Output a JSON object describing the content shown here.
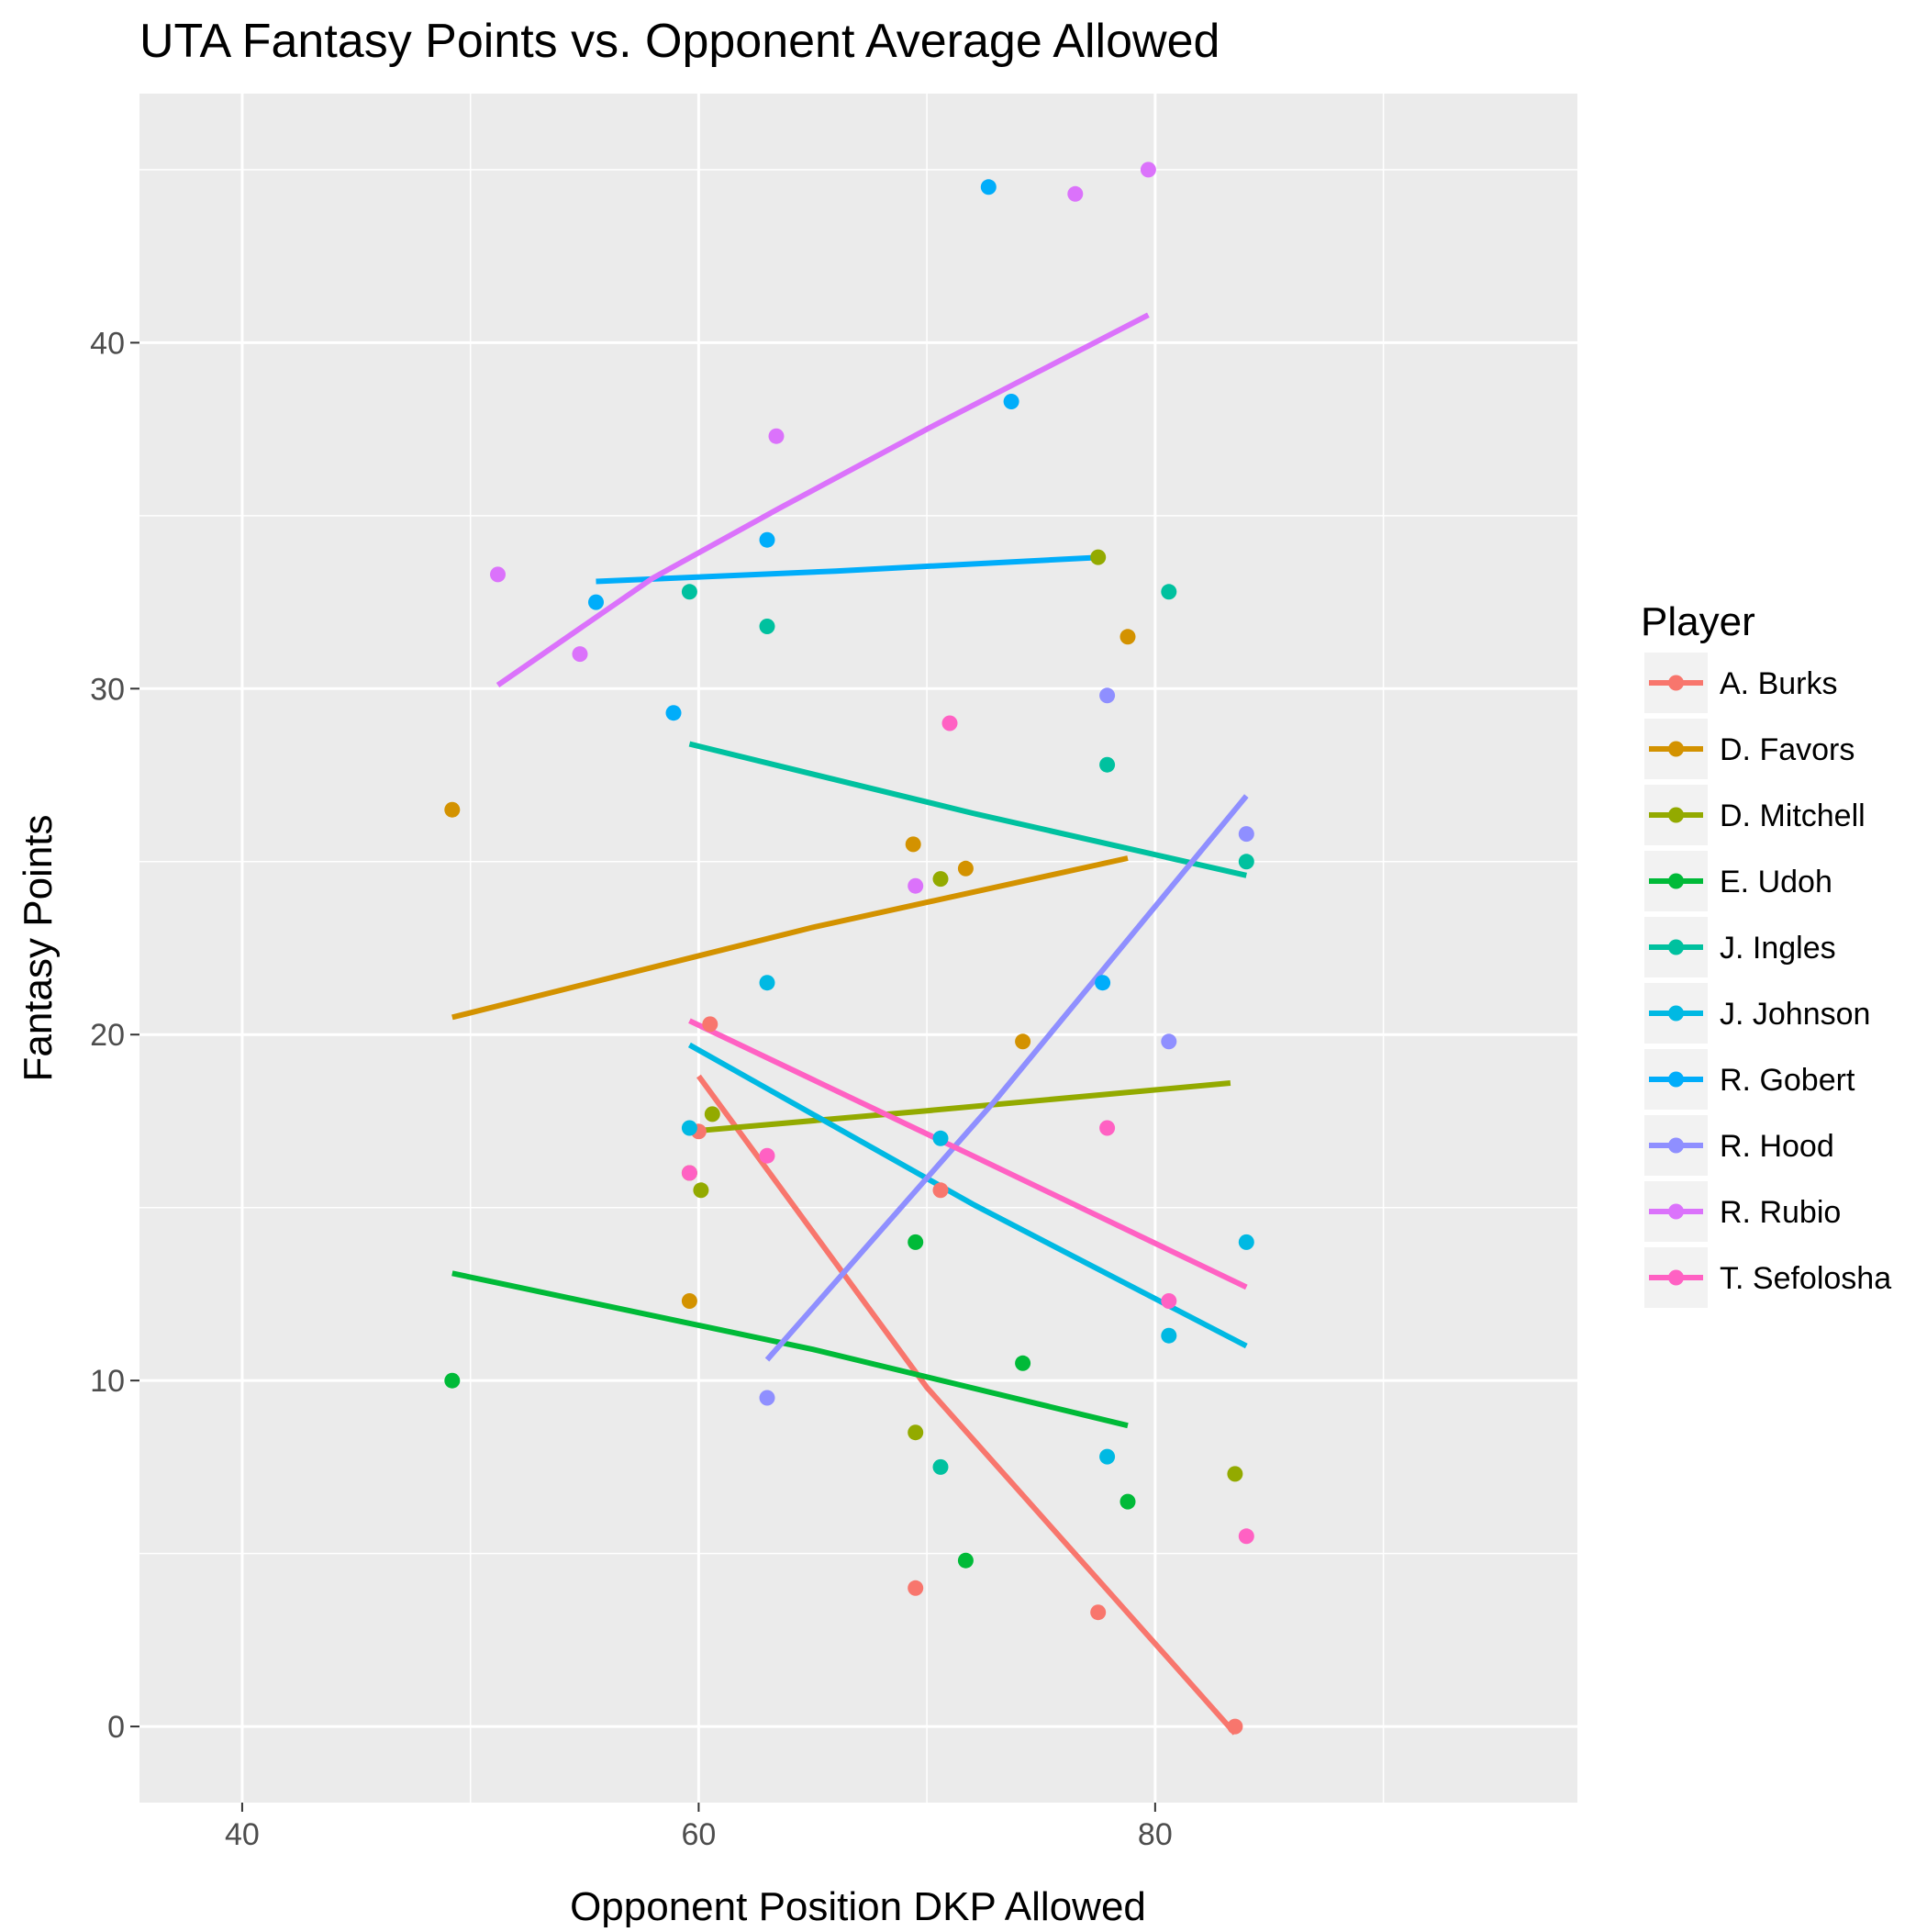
{
  "chart_data": {
    "type": "scatter",
    "title": "UTA Fantasy Points vs. Opponent Average Allowed",
    "xlabel": "Opponent Position DKP Allowed",
    "ylabel": "Fantasy Points",
    "xlim": [
      35.5,
      98.5
    ],
    "ylim": [
      -2.2,
      47.2
    ],
    "x_ticks": [
      40,
      60,
      80
    ],
    "y_ticks": [
      0,
      10,
      20,
      30,
      40
    ],
    "grid": true,
    "legend_title": "Player",
    "legend_position": "right",
    "series": [
      {
        "name": "A. Burks",
        "color": "#F8766D",
        "points": [
          [
            60,
            17.2
          ],
          [
            60.5,
            20.3
          ],
          [
            69.5,
            4.0
          ],
          [
            70.6,
            15.5
          ],
          [
            77.5,
            3.3
          ],
          [
            83.5,
            0.0
          ]
        ],
        "fit": [
          [
            60,
            18.8
          ],
          [
            70,
            9.8
          ],
          [
            83.5,
            -0.2
          ]
        ]
      },
      {
        "name": "D. Favors",
        "color": "#D39200",
        "points": [
          [
            49.2,
            26.5
          ],
          [
            59.6,
            12.3
          ],
          [
            69.4,
            25.5
          ],
          [
            71.7,
            24.8
          ],
          [
            74.2,
            19.8
          ],
          [
            78.8,
            31.5
          ]
        ],
        "fit": [
          [
            49.2,
            20.5
          ],
          [
            65,
            23.1
          ],
          [
            78.8,
            25.1
          ]
        ]
      },
      {
        "name": "D. Mitchell",
        "color": "#93AA00",
        "points": [
          [
            59.6,
            16.0
          ],
          [
            60.1,
            15.5
          ],
          [
            60.6,
            17.7
          ],
          [
            69.5,
            8.5
          ],
          [
            70.6,
            24.5
          ],
          [
            77.5,
            33.8
          ],
          [
            83.5,
            7.3
          ]
        ],
        "fit": [
          [
            59.6,
            17.2
          ],
          [
            70,
            17.8
          ],
          [
            83.3,
            18.6
          ]
        ]
      },
      {
        "name": "E. Udoh",
        "color": "#00BA38",
        "points": [
          [
            49.2,
            10.0
          ],
          [
            69.5,
            14.0
          ],
          [
            71.7,
            4.8
          ],
          [
            74.2,
            10.5
          ],
          [
            78.8,
            6.5
          ]
        ],
        "fit": [
          [
            49.2,
            13.1
          ],
          [
            65,
            10.9
          ],
          [
            78.8,
            8.7
          ]
        ]
      },
      {
        "name": "J. Ingles",
        "color": "#00C19F",
        "points": [
          [
            59.6,
            32.8
          ],
          [
            63,
            31.8
          ],
          [
            70.6,
            7.5
          ],
          [
            77.9,
            27.8
          ],
          [
            80.6,
            32.8
          ],
          [
            84,
            25.0
          ]
        ],
        "fit": [
          [
            59.6,
            28.4
          ],
          [
            72,
            26.4
          ],
          [
            84,
            24.6
          ]
        ]
      },
      {
        "name": "J. Johnson",
        "color": "#00B9E3",
        "points": [
          [
            59.6,
            17.3
          ],
          [
            63,
            21.5
          ],
          [
            70.6,
            17.0
          ],
          [
            77.9,
            7.8
          ],
          [
            80.6,
            11.3
          ],
          [
            84,
            14.0
          ]
        ],
        "fit": [
          [
            59.6,
            19.7
          ],
          [
            72,
            15.1
          ],
          [
            84,
            11.0
          ]
        ]
      },
      {
        "name": "R. Gobert",
        "color": "#00ADFA",
        "points": [
          [
            55.5,
            32.5
          ],
          [
            58.9,
            29.3
          ],
          [
            63,
            34.3
          ],
          [
            72.7,
            44.5
          ],
          [
            73.7,
            38.3
          ],
          [
            77.7,
            21.5
          ]
        ],
        "fit": [
          [
            55.5,
            33.1
          ],
          [
            66,
            33.4
          ],
          [
            77.7,
            33.8
          ]
        ]
      },
      {
        "name": "R. Hood",
        "color": "#8F8FFF",
        "points": [
          [
            63,
            9.5
          ],
          [
            77.9,
            29.8
          ],
          [
            80.6,
            19.8
          ],
          [
            84,
            25.8
          ]
        ],
        "fit": [
          [
            63,
            10.6
          ],
          [
            73,
            18.1
          ],
          [
            84,
            26.9
          ]
        ]
      },
      {
        "name": "R. Rubio",
        "color": "#DB72FB",
        "points": [
          [
            51.2,
            33.3
          ],
          [
            54.8,
            31.0
          ],
          [
            63.4,
            37.3
          ],
          [
            69.5,
            24.3
          ],
          [
            76.5,
            44.3
          ],
          [
            79.7,
            45.0
          ]
        ],
        "fit": [
          [
            51.2,
            30.1
          ],
          [
            58,
            33.2
          ],
          [
            63.5,
            35.2
          ],
          [
            70,
            37.5
          ],
          [
            75,
            39.2
          ],
          [
            79.7,
            40.8
          ]
        ]
      },
      {
        "name": "T. Sefolosha",
        "color": "#FF61C3",
        "points": [
          [
            59.6,
            16.0
          ],
          [
            63,
            16.5
          ],
          [
            71,
            29.0
          ],
          [
            77.9,
            17.3
          ],
          [
            80.6,
            12.3
          ],
          [
            84,
            5.5
          ]
        ],
        "fit": [
          [
            59.6,
            20.4
          ],
          [
            72,
            16.5
          ],
          [
            84,
            12.7
          ]
        ]
      }
    ]
  }
}
